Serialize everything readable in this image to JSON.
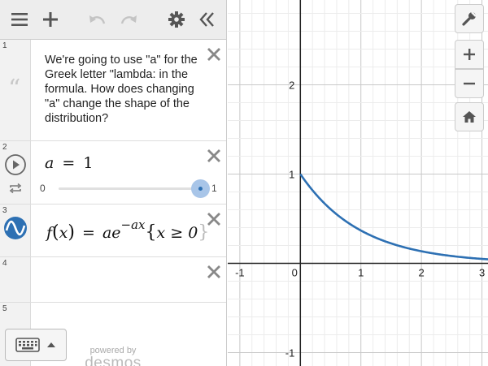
{
  "expressions": [
    {
      "index": "1",
      "type": "note",
      "text": "We're going to use \"a\" for the Greek letter \"lambda: in the formula.  How does changing \"a\" change the shape of the distribution?"
    },
    {
      "index": "2",
      "type": "slider",
      "variable": "a",
      "equals": "=",
      "value": "1",
      "min_label": "0",
      "max_label": "1",
      "slider_fraction": 1.0
    },
    {
      "index": "3",
      "type": "function",
      "lhs_name": "f",
      "lhs_var": "x",
      "equals": "=",
      "coef": "a",
      "base": "e",
      "exponent": "−ax",
      "restriction": "x ≥ 0",
      "color": "#2d70b3"
    },
    {
      "index": "4",
      "type": "empty"
    },
    {
      "index": "5",
      "type": "empty"
    }
  ],
  "footer": {
    "powered_by": "powered by",
    "logo_text": "desmos"
  },
  "graph": {
    "x_range": [
      -1.2,
      3.1
    ],
    "y_range": [
      -1.15,
      2.95
    ],
    "x_ticks": [
      "-1",
      "0",
      "1",
      "2",
      "3"
    ],
    "y_ticks": [
      "-1",
      "1",
      "2"
    ],
    "curve_color": "#2d70b3",
    "grid_minor": 0.2
  },
  "icons": {
    "menu": "hamburger-icon",
    "add": "plus-icon",
    "undo": "undo-icon",
    "redo": "redo-icon",
    "settings": "gear-icon",
    "collapse": "double-chevron-left-icon",
    "wrench": "wrench-icon",
    "zoom_in": "zoom-in-icon",
    "zoom_out": "zoom-out-icon",
    "home": "home-icon"
  }
}
